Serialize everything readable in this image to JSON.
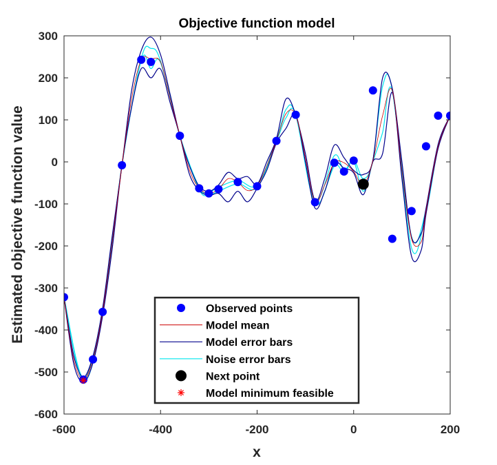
{
  "chart_data": {
    "type": "line",
    "title": "Objective function model",
    "xlabel": "x",
    "ylabel": "Estimated objective function value",
    "xlim": [
      -600,
      200
    ],
    "ylim": [
      -600,
      300
    ],
    "xticks": [
      -600,
      -400,
      -200,
      0,
      200
    ],
    "xtick_labels": [
      "-600",
      "-400",
      "-200",
      "0",
      "200"
    ],
    "yticks": [
      -600,
      -500,
      -400,
      -300,
      -200,
      -100,
      0,
      100,
      200,
      300
    ],
    "ytick_labels": [
      "-600",
      "-500",
      "-400",
      "-300",
      "-200",
      "-100",
      "0",
      "100",
      "200",
      "300"
    ],
    "grid": false,
    "legend_position": "bottom-center",
    "observed_points": {
      "name": "Observed points",
      "color": "#0000ff",
      "x": [
        -600,
        -560,
        -540,
        -520,
        -480,
        -440,
        -420,
        -360,
        -320,
        -300,
        -280,
        -240,
        -200,
        -160,
        -120,
        -80,
        -40,
        -20,
        0,
        40,
        80,
        120,
        150,
        175,
        200
      ],
      "y": [
        -322,
        -518,
        -470,
        -357,
        -8,
        243,
        238,
        62,
        -63,
        -75,
        -65,
        -48,
        -58,
        50,
        112,
        -96,
        -2,
        -23,
        3,
        170,
        -183,
        -117,
        37,
        110,
        110
      ]
    },
    "model_mean": {
      "name": "Model mean",
      "color": "#cc0000",
      "x": [
        -600,
        -580,
        -560,
        -540,
        -520,
        -500,
        -480,
        -460,
        -440,
        -420,
        -400,
        -380,
        -360,
        -340,
        -320,
        -300,
        -280,
        -260,
        -240,
        -220,
        -200,
        -180,
        -160,
        -140,
        -120,
        -100,
        -80,
        -60,
        -40,
        -20,
        0,
        20,
        40,
        60,
        80,
        100,
        120,
        140,
        150,
        175,
        200
      ],
      "y": [
        -322,
        -470,
        -518,
        -470,
        -357,
        -190,
        -8,
        150,
        243,
        245,
        238,
        150,
        62,
        -20,
        -63,
        -75,
        -65,
        -40,
        -48,
        -68,
        -58,
        -10,
        50,
        115,
        112,
        10,
        -96,
        -55,
        -2,
        -2,
        -23,
        -55,
        3,
        110,
        170,
        -20,
        -183,
        -190,
        -117,
        37,
        110
      ]
    },
    "model_error_bars": {
      "name": "Model error bars",
      "color": "#00008b",
      "upper": {
        "x": [
          -600,
          -580,
          -560,
          -540,
          -520,
          -500,
          -480,
          -460,
          -440,
          -420,
          -400,
          -380,
          -360,
          -340,
          -320,
          -300,
          -280,
          -260,
          -240,
          -220,
          -200,
          -180,
          -160,
          -140,
          -120,
          -100,
          -80,
          -60,
          -40,
          -20,
          0,
          20,
          40,
          60,
          80,
          100,
          120,
          140,
          150,
          175,
          200
        ],
        "y": [
          -322,
          -460,
          -512,
          -462,
          -348,
          -175,
          -8,
          170,
          265,
          297,
          255,
          160,
          62,
          -10,
          -58,
          -70,
          -55,
          -25,
          -40,
          -35,
          -53,
          0,
          55,
          150,
          112,
          20,
          -92,
          -40,
          40,
          10,
          -20,
          -30,
          5,
          200,
          175,
          0,
          -180,
          -170,
          -110,
          42,
          110
        ]
      },
      "lower": {
        "x": [
          -600,
          -580,
          -560,
          -540,
          -520,
          -500,
          -480,
          -460,
          -440,
          -420,
          -400,
          -380,
          -360,
          -340,
          -320,
          -300,
          -280,
          -260,
          -240,
          -220,
          -200,
          -180,
          -160,
          -140,
          -120,
          -100,
          -80,
          -60,
          -40,
          -20,
          0,
          20,
          40,
          60,
          80,
          100,
          120,
          140,
          150,
          175,
          200
        ],
        "y": [
          -322,
          -480,
          -524,
          -478,
          -366,
          -205,
          -8,
          130,
          222,
          200,
          221,
          140,
          62,
          -30,
          -68,
          -80,
          -75,
          -95,
          -70,
          -95,
          -63,
          -20,
          45,
          80,
          112,
          0,
          -110,
          -70,
          -2,
          -15,
          -26,
          -78,
          1,
          20,
          165,
          -40,
          -225,
          -210,
          -124,
          32,
          110
        ]
      }
    },
    "noise_error_bars": {
      "name": "Noise error bars",
      "color": "#00e5ee",
      "upper": {
        "x": [
          -600,
          -560,
          -520,
          -480,
          -440,
          -420,
          -400,
          -360,
          -320,
          -300,
          -280,
          -240,
          -200,
          -160,
          -140,
          -120,
          -80,
          -40,
          -20,
          0,
          20,
          40,
          60,
          80,
          120,
          150,
          175,
          200
        ],
        "y": [
          -322,
          -514,
          -352,
          -8,
          245,
          270,
          240,
          62,
          -60,
          -72,
          -60,
          -44,
          -55,
          52,
          125,
          112,
          -92,
          15,
          -20,
          5,
          -40,
          5,
          180,
          172,
          -178,
          -114,
          40,
          110
        ]
      },
      "lower": {
        "x": [
          -600,
          -560,
          -520,
          -480,
          -440,
          -420,
          -400,
          -360,
          -320,
          -300,
          -280,
          -240,
          -200,
          -160,
          -140,
          -120,
          -80,
          -40,
          -20,
          0,
          20,
          40,
          60,
          80,
          120,
          150,
          175,
          200
        ],
        "y": [
          -322,
          -522,
          -362,
          -8,
          241,
          222,
          236,
          62,
          -66,
          -78,
          -70,
          -52,
          -61,
          48,
          105,
          112,
          -100,
          -10,
          -26,
          1,
          -70,
          1,
          70,
          168,
          -205,
          -120,
          34,
          110
        ]
      }
    },
    "next_point": {
      "name": "Next point",
      "color": "#000000",
      "x": 20,
      "y": -53
    },
    "model_minimum_feasible": {
      "name": "Model minimum feasible",
      "color": "#ff0000",
      "x": -560,
      "y": -520
    },
    "legend_entries": [
      "Observed points",
      "Model mean",
      "Model error bars",
      "Noise error bars",
      "Next point",
      "Model minimum feasible"
    ]
  }
}
